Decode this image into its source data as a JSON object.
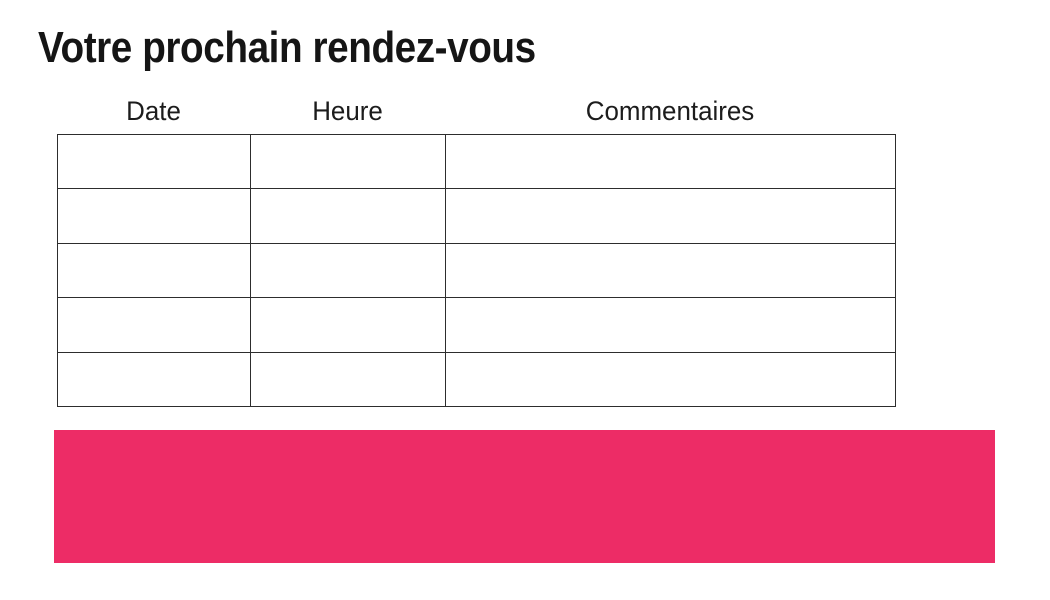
{
  "page": {
    "title": "Votre prochain rendez-vous",
    "background": "#ffffff"
  },
  "table": {
    "columns": [
      "Date",
      "Heure",
      "Commentaires"
    ],
    "rows": [
      [
        "",
        "",
        ""
      ],
      [
        "",
        "",
        ""
      ],
      [
        "",
        "",
        ""
      ],
      [
        "",
        "",
        ""
      ],
      [
        "",
        "",
        ""
      ]
    ],
    "border_color": "#2d2d2d"
  },
  "banner": {
    "label": "",
    "color": "#ED2C66"
  },
  "colors": {
    "accent_pink": "#ED2C66",
    "text": "#151515"
  }
}
